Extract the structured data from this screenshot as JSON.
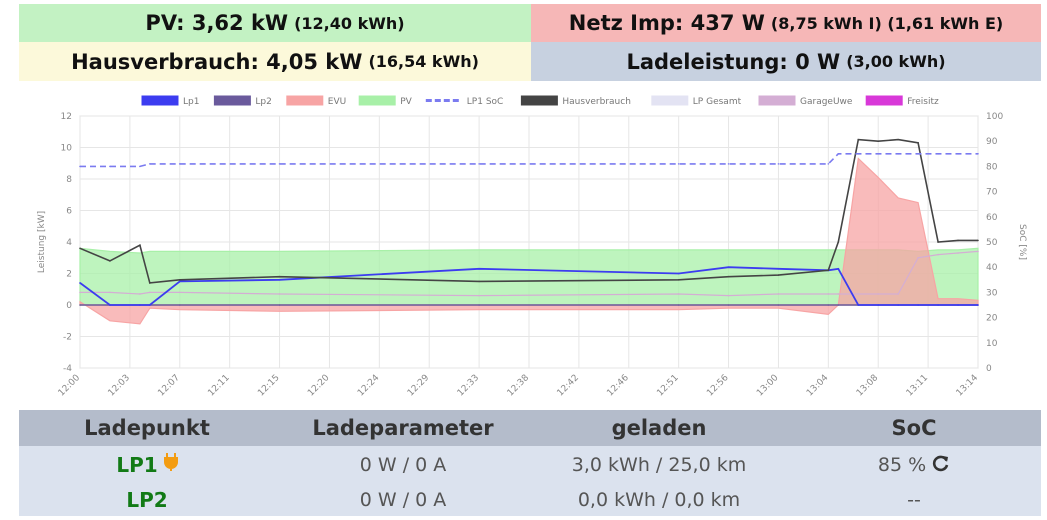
{
  "tiles": {
    "pv": {
      "label": "PV: 3,62 kW",
      "sub": "(12,40 kWh)",
      "color": "#c3f2c3"
    },
    "netz": {
      "label": "Netz Imp: 437 W",
      "sub": "(8,75 kWh I) (1,61 kWh E)",
      "color": "#f6b7b7"
    },
    "haus": {
      "label": "Hausverbrauch: 4,05 kW",
      "sub": "(16,54 kWh)",
      "color": "#fcf9da"
    },
    "lade": {
      "label": "Ladeleistung: 0 W",
      "sub": "(3,00 kWh)",
      "color": "#c7d1e0"
    }
  },
  "table": {
    "headers": [
      "Ladepunkt",
      "Ladeparameter",
      "geladen",
      "SoC"
    ],
    "rows": [
      {
        "name": "LP1",
        "plug_icon": "plug-icon",
        "param": "0 W / 0 A",
        "loaded": "3,0 kWh / 25,0 km",
        "soc": "85 %",
        "soc_icon": "refresh-icon"
      },
      {
        "name": "LP2",
        "param": "0 W / 0 A",
        "loaded": "0,0 kWh / 0,0 km",
        "soc": "--"
      }
    ]
  },
  "chart_data": {
    "type": "line",
    "legend_position": "top",
    "grid": true,
    "legend": [
      {
        "name": "Lp1",
        "color": "#3c3cf0",
        "dashed": false
      },
      {
        "name": "Lp2",
        "color": "#6a5a9c",
        "dashed": false
      },
      {
        "name": "EVU",
        "color": "#f7a4a4",
        "dashed": false
      },
      {
        "name": "PV",
        "color": "#a8f0a8",
        "dashed": false
      },
      {
        "name": "LP1 SoC",
        "color": "#7b7bf0",
        "dashed": true
      },
      {
        "name": "Hausverbrauch",
        "color": "#444444",
        "dashed": false
      },
      {
        "name": "LP Gesamt",
        "color": "#e3e3f3",
        "dashed": false
      },
      {
        "name": "GarageUwe",
        "color": "#d4aed4",
        "dashed": false
      },
      {
        "name": "Freisitz",
        "color": "#d838d8",
        "dashed": false
      }
    ],
    "xlabels": [
      "12:00",
      "12:03",
      "12:07",
      "12:11",
      "12:15",
      "12:20",
      "12:24",
      "12:29",
      "12:33",
      "12:38",
      "12:42",
      "12:46",
      "12:51",
      "12:56",
      "13:00",
      "13:04",
      "13:08",
      "13:11",
      "13:14"
    ],
    "ylabel_left": "Leistung [kW]",
    "ylabel_right": "SoC [%]",
    "ylim_left": [
      -4,
      12
    ],
    "yticks_left": [
      "-4",
      "-2",
      "0",
      "2",
      "4",
      "6",
      "8",
      "10",
      "12"
    ],
    "ylim_right": [
      0,
      100
    ],
    "yticks_right": [
      "0",
      "10",
      "20",
      "30",
      "40",
      "50",
      "60",
      "70",
      "80",
      "90",
      "100"
    ],
    "x_minutes": [
      0,
      3,
      6,
      7,
      10,
      20,
      40,
      60,
      65,
      70,
      75,
      76,
      78,
      80,
      82,
      84,
      86,
      88,
      90
    ],
    "series": [
      {
        "name": "PV",
        "values": [
          3.6,
          3.4,
          3.3,
          3.4,
          3.4,
          3.4,
          3.5,
          3.5,
          3.5,
          3.5,
          3.5,
          3.5,
          3.5,
          3.5,
          3.5,
          3.4,
          3.5,
          3.5,
          3.6
        ]
      },
      {
        "name": "EVU",
        "values": [
          0.2,
          -1.0,
          -1.2,
          -0.2,
          -0.3,
          -0.4,
          -0.3,
          -0.3,
          -0.2,
          -0.2,
          -0.6,
          0.0,
          9.3,
          8.1,
          6.8,
          6.5,
          0.4,
          0.4,
          0.3
        ]
      },
      {
        "name": "Hausverbrauch",
        "values": [
          3.6,
          2.8,
          3.8,
          1.4,
          1.6,
          1.8,
          1.5,
          1.6,
          1.8,
          1.9,
          2.2,
          4.0,
          10.5,
          10.4,
          10.5,
          10.3,
          4.0,
          4.1,
          4.1
        ]
      },
      {
        "name": "Lp1",
        "values": [
          1.4,
          0.0,
          0.0,
          0.0,
          1.5,
          1.6,
          2.3,
          2.0,
          2.4,
          2.3,
          2.2,
          2.3,
          0.0,
          0.0,
          0.0,
          0.0,
          0.0,
          0.0,
          0.0
        ]
      },
      {
        "name": "Lp2",
        "values": [
          0.0,
          0.0,
          0.0,
          0.0,
          0.0,
          0.0,
          0.0,
          0.0,
          0.0,
          0.0,
          0.0,
          0.0,
          0.0,
          0.0,
          0.0,
          0.0,
          0.0,
          0.0,
          0.0
        ]
      },
      {
        "name": "GarageUwe",
        "values": [
          0.8,
          0.8,
          0.7,
          0.8,
          0.8,
          0.7,
          0.6,
          0.7,
          0.6,
          0.7,
          0.7,
          0.7,
          0.7,
          0.7,
          0.7,
          3.0,
          3.2,
          3.3,
          3.4
        ]
      },
      {
        "name": "LP1 SoC",
        "values": [
          80,
          80,
          80,
          81,
          81,
          81,
          81,
          81,
          81,
          81,
          81,
          85,
          85,
          85,
          85,
          85,
          85,
          85,
          85
        ]
      }
    ]
  }
}
